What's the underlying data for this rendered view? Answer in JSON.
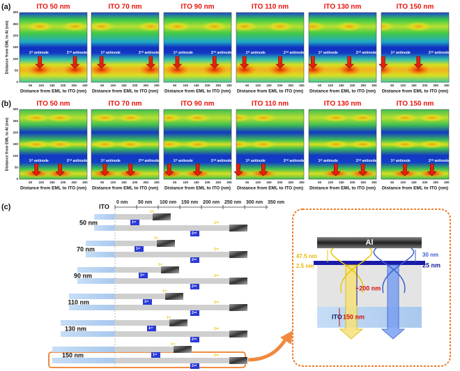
{
  "panels": [
    {
      "label": "(a)",
      "titles": [
        "ITO 50 nm",
        "ITO 70 nm",
        "ITO 90 nm",
        "ITO 110 nm",
        "ITO 130 nm",
        "ITO 150 nm"
      ],
      "y_axis_label": "Distance from EML to Al (nm)",
      "x_axis_label": "Distance from EML to ITO (nm)",
      "yticks": [
        "0",
        "50",
        "100",
        "150",
        "200",
        "250",
        "300"
      ],
      "xticks": [
        "50",
        "100",
        "150",
        "200",
        "250",
        "300"
      ],
      "antinodes": [
        {
          "n": "1",
          "sup": "st",
          "word": "antinode"
        },
        {
          "n": "2",
          "sup": "nd",
          "word": "antinode"
        }
      ]
    },
    {
      "label": "(b)",
      "titles": [
        "ITO 50 nm",
        "ITO 70 nm",
        "ITO 90 nm",
        "ITO 110 nm",
        "ITO 130 nm",
        "ITO 150 nm"
      ],
      "y_axis_label": "Distance from EML to Al (nm)",
      "x_axis_label": "Distance from EML to ITO (nm)",
      "yticks": [
        "0",
        "50",
        "100",
        "150",
        "200",
        "250",
        "300"
      ],
      "xticks": [
        "50",
        "100",
        "150",
        "200",
        "250",
        "300"
      ],
      "antinodes": [
        {
          "n": "1",
          "sup": "st",
          "word": "antinode"
        },
        {
          "n": "2",
          "sup": "nd",
          "word": "antinode"
        }
      ]
    }
  ],
  "schematic": {
    "label": "(c)",
    "ito": "ITO",
    "axis_ticks": [
      "0 nm",
      "50 nm",
      "100 nm",
      "150 nm",
      "200 nm",
      "250 nm",
      "300 nm",
      "350 nm"
    ],
    "rows": [
      "50 nm",
      "70 nm",
      "90 nm",
      "110 nm",
      "130 nm",
      "150 nm"
    ],
    "badges": [
      {
        "n": "1",
        "sup": "st"
      },
      {
        "n": "2",
        "sup": "nd"
      }
    ]
  },
  "inset": {
    "al": "Al",
    "top_yellow": "47.5 nm",
    "bottom_yellow": "2.5 nm",
    "top_blue": "30 nm",
    "bottom_blue": "25 nm",
    "cavity": "~200 nm",
    "ito": "ITO",
    "ito_thickness": "150 nm"
  }
}
